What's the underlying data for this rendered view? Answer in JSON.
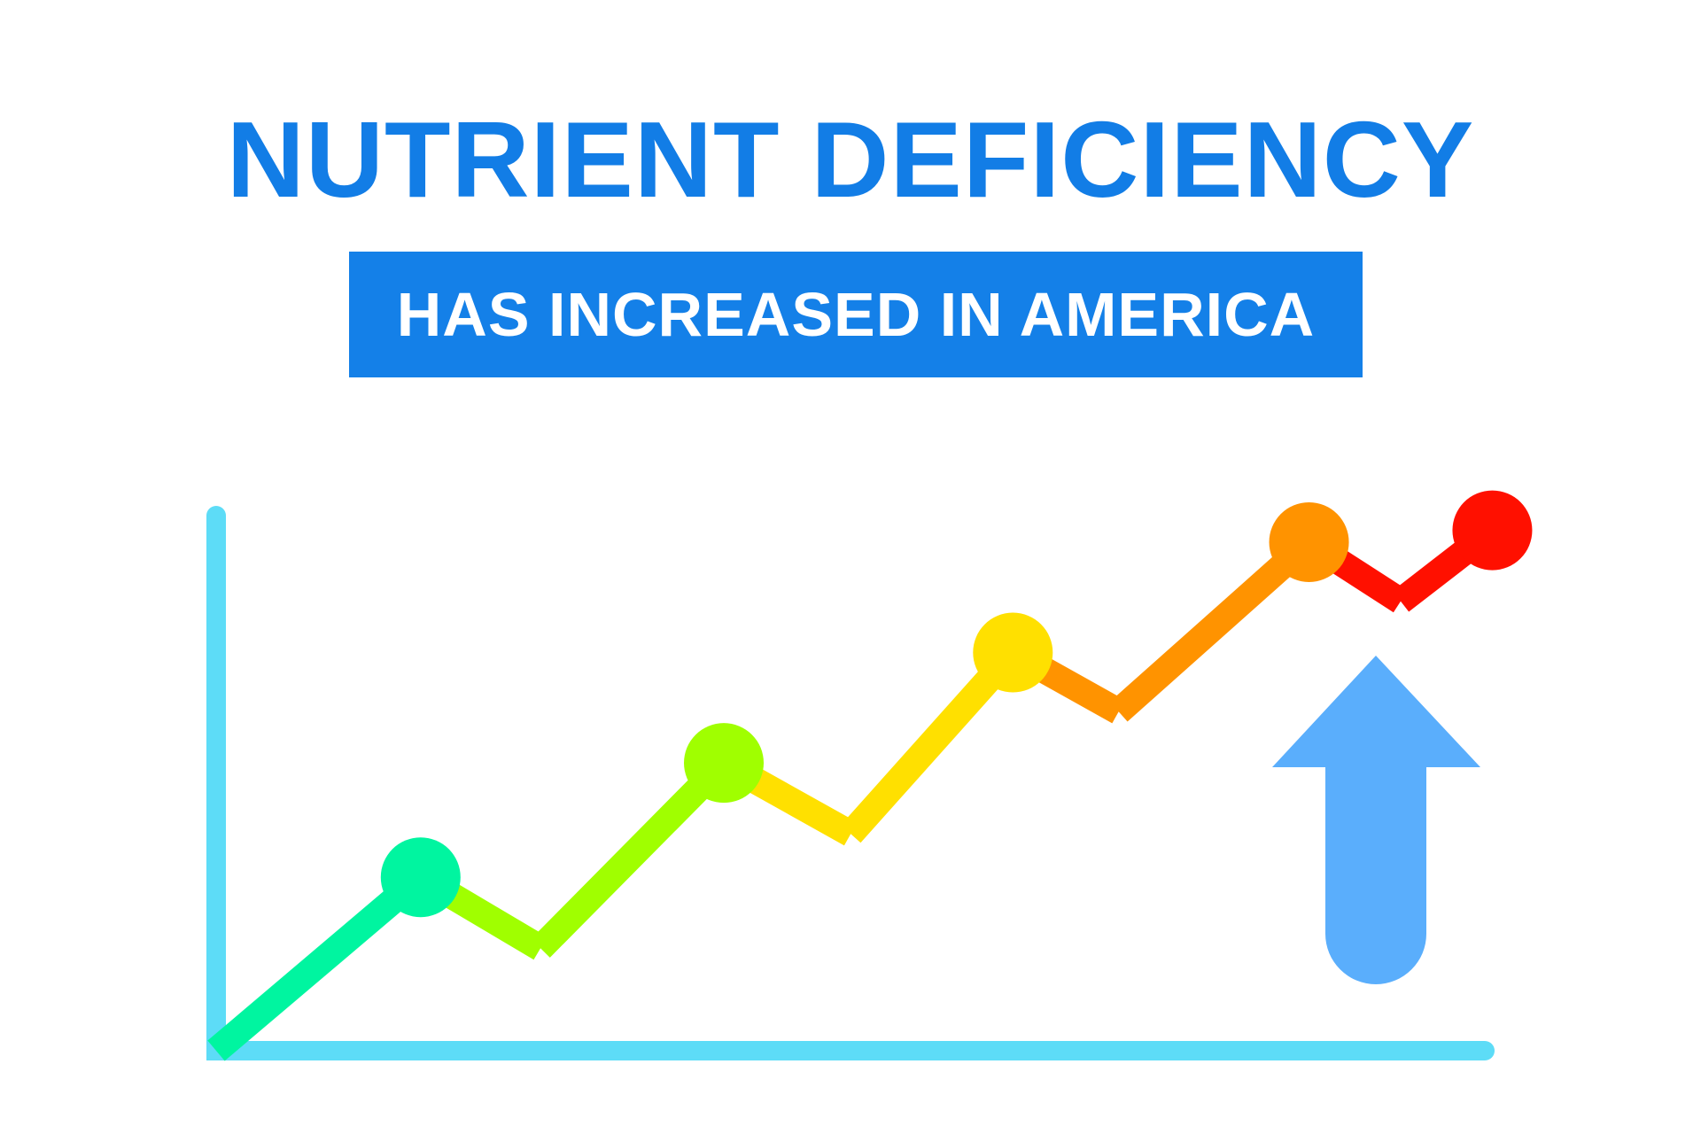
{
  "title": "NUTRIENT DEFICIENCY",
  "subtitle": "HAS INCREASED IN AMERICA",
  "colors": {
    "title": "#127de6",
    "banner": "#1480e8",
    "banner_text": "#ffffff",
    "axis": "#5ddcf7",
    "arrow": "#5aaefc"
  },
  "chart_data": {
    "type": "line",
    "title": "",
    "xlabel": "",
    "ylabel": "",
    "grid": false,
    "legend": "none",
    "xlim": [
      0,
      12
    ],
    "ylim": [
      0,
      12
    ],
    "points": [
      {
        "x": 0,
        "y": 0,
        "marker": false,
        "color": "#00f5a0"
      },
      {
        "x": 1.45,
        "y": 2.2,
        "marker": true,
        "color": "#00f5a0"
      },
      {
        "x": 2.3,
        "y": 1.3,
        "marker": false,
        "color": "#a0ff00"
      },
      {
        "x": 3.6,
        "y": 3.65,
        "marker": true,
        "color": "#a0ff00"
      },
      {
        "x": 4.5,
        "y": 2.75,
        "marker": false,
        "color": "#ffe000"
      },
      {
        "x": 5.65,
        "y": 5.05,
        "marker": true,
        "color": "#ffe000"
      },
      {
        "x": 6.4,
        "y": 4.3,
        "marker": false,
        "color": "#ff9300"
      },
      {
        "x": 7.75,
        "y": 6.45,
        "marker": true,
        "color": "#ff9300"
      },
      {
        "x": 8.4,
        "y": 5.7,
        "marker": false,
        "color": "#ff1000"
      },
      {
        "x": 9.05,
        "y": 6.6,
        "marker": true,
        "color": "#ff1000"
      }
    ],
    "arrow": {
      "direction": "up"
    }
  }
}
